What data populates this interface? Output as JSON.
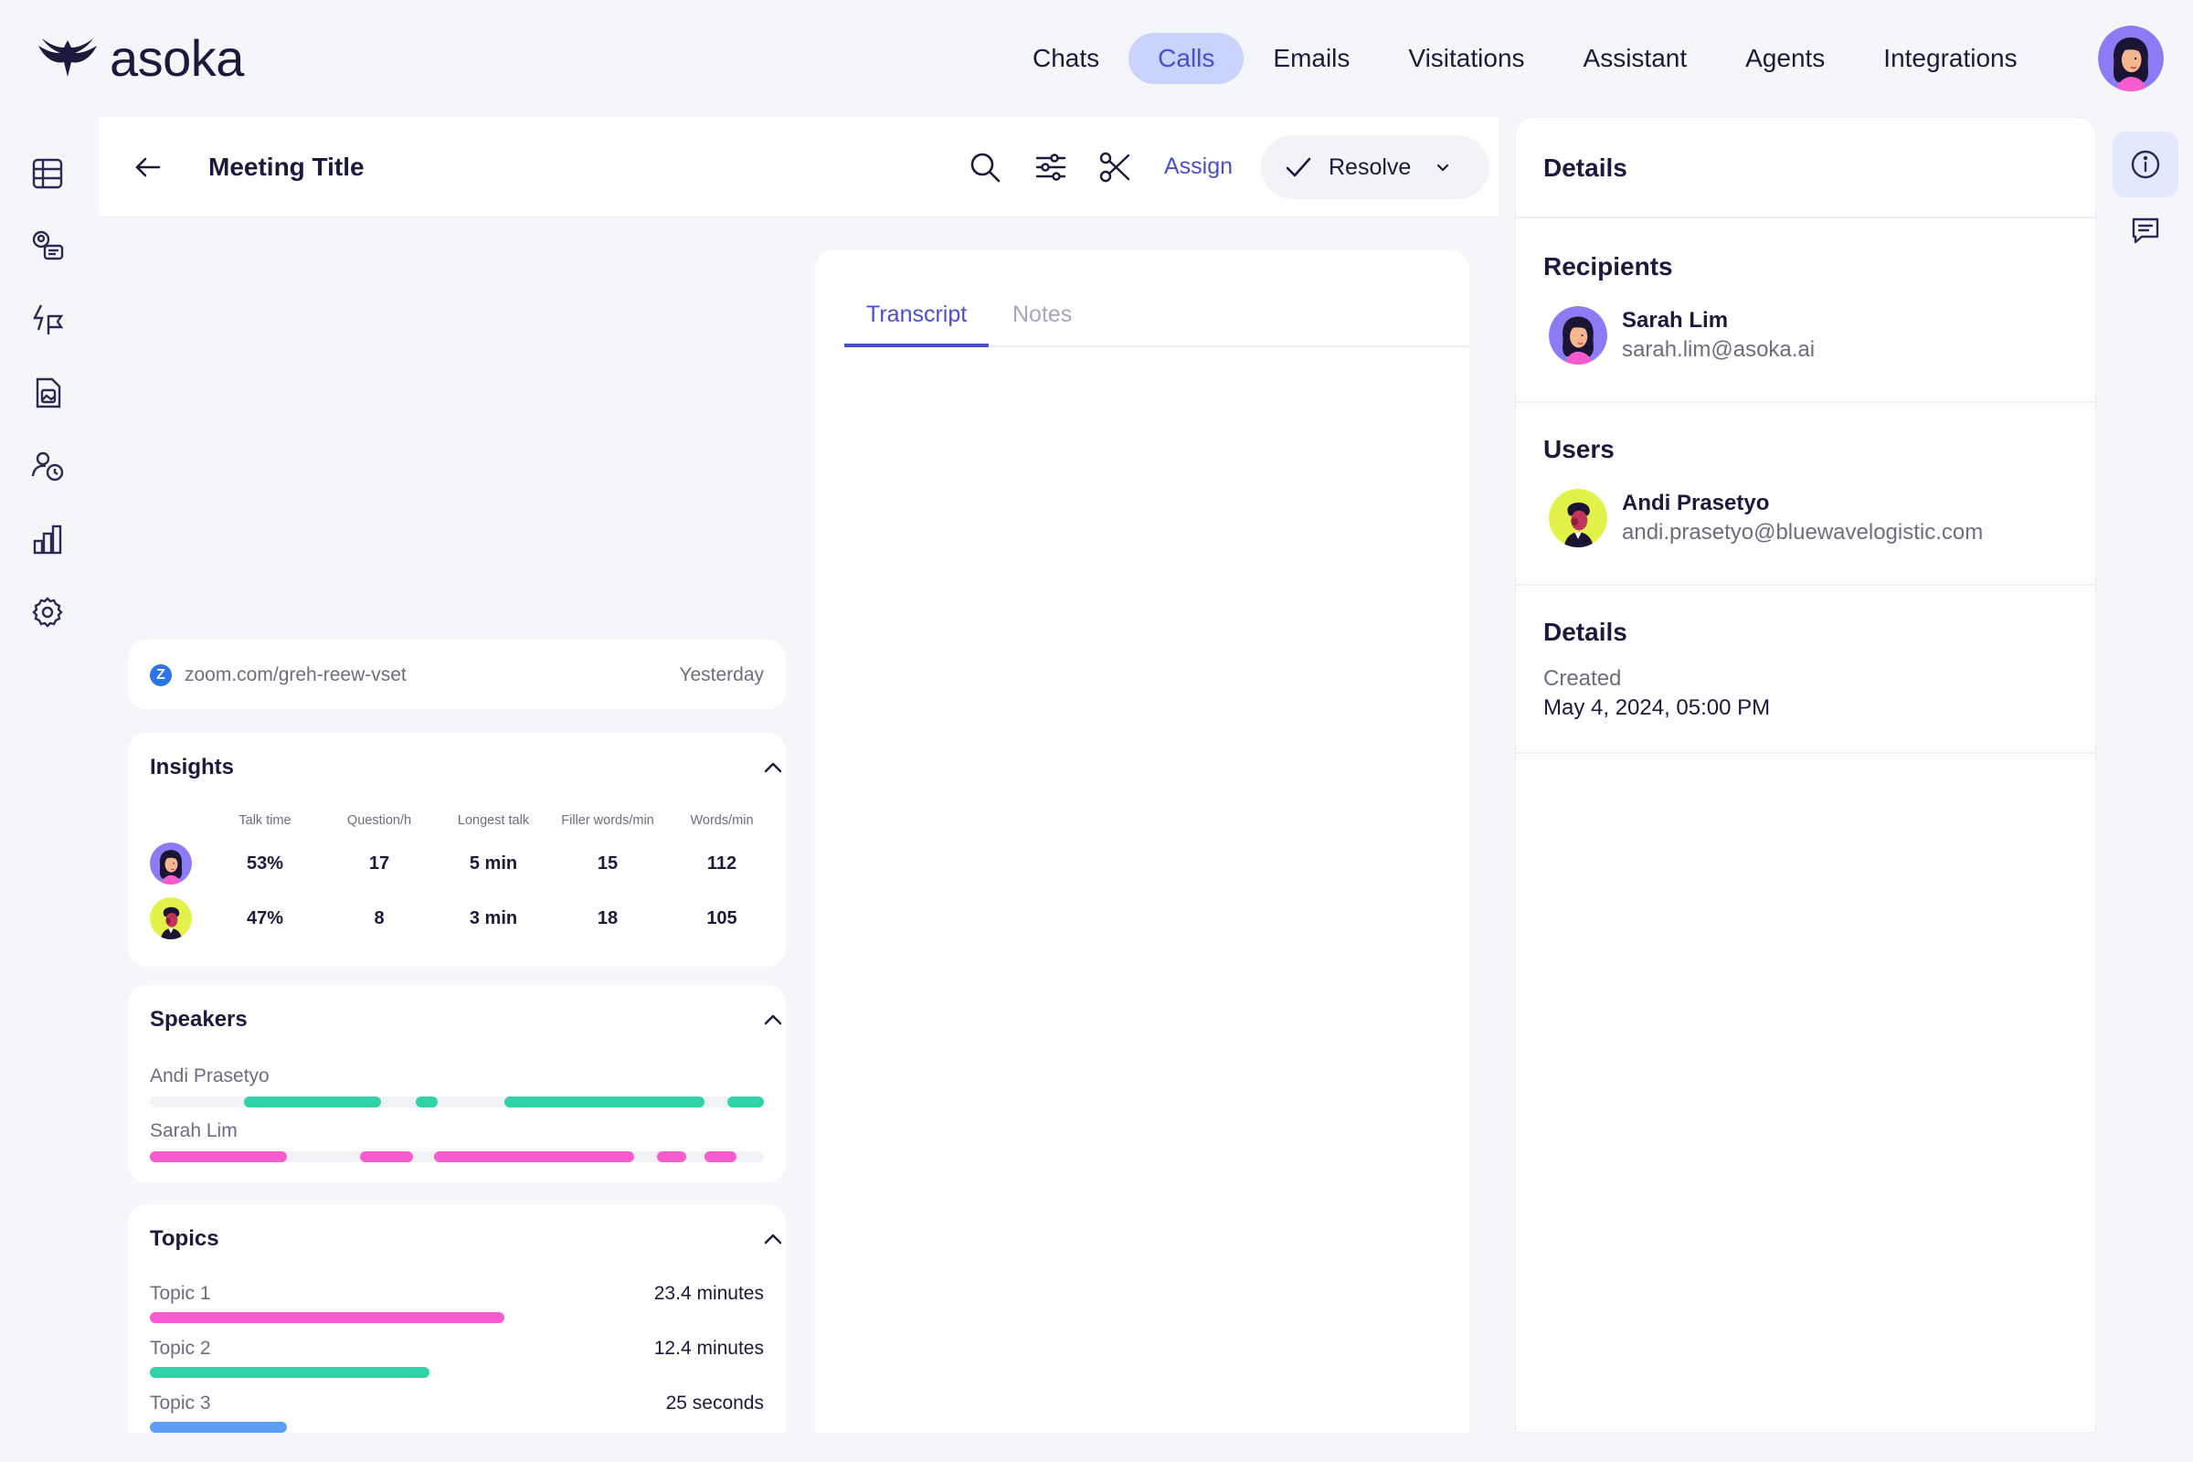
{
  "brand": {
    "name": "asoka"
  },
  "nav": {
    "items": [
      {
        "label": "Chats",
        "active": false
      },
      {
        "label": "Calls",
        "active": true
      },
      {
        "label": "Emails",
        "active": false
      },
      {
        "label": "Visitations",
        "active": false
      },
      {
        "label": "Assistant",
        "active": false
      },
      {
        "label": "Agents",
        "active": false
      },
      {
        "label": "Integrations",
        "active": false
      }
    ]
  },
  "left_rail": {
    "icons": [
      "table-icon",
      "chat-users-icon",
      "flag-flash-icon",
      "document-image-icon",
      "person-clock-icon",
      "bar-chart-icon",
      "settings-icon"
    ]
  },
  "main": {
    "title": "Meeting Title",
    "assign_label": "Assign",
    "resolve_label": "Resolve",
    "meeting_link": {
      "url": "zoom.com/greh-reew-vset",
      "date": "Yesterday",
      "badge": "Z"
    }
  },
  "insights": {
    "title": "Insights",
    "columns": [
      "Talk time",
      "Question/h",
      "Longest talk",
      "Filler words/min",
      "Words/min"
    ],
    "rows": [
      {
        "speaker": "Sarah Lim",
        "values": [
          "53%",
          "17",
          "5 min",
          "15",
          "112"
        ]
      },
      {
        "speaker": "Andi Prasetyo",
        "values": [
          "47%",
          "8",
          "3 min",
          "18",
          "105"
        ]
      }
    ]
  },
  "speakers": {
    "title": "Speakers",
    "tracks": [
      {
        "name": "Andi Prasetyo",
        "color": "#2fd3a7",
        "segments": [
          [
            0.153,
            0.376
          ],
          [
            0.433,
            0.469
          ],
          [
            0.578,
            0.903
          ],
          [
            0.94,
            1.0
          ]
        ]
      },
      {
        "name": "Sarah Lim",
        "color": "#f75ccf",
        "segments": [
          [
            0.0,
            0.223
          ],
          [
            0.342,
            0.428
          ],
          [
            0.463,
            0.789
          ],
          [
            0.826,
            0.874
          ],
          [
            0.904,
            0.955
          ]
        ]
      }
    ]
  },
  "topics": {
    "title": "Topics",
    "items": [
      {
        "label": "Topic 1",
        "value": "23.4 minutes",
        "fraction": 0.578,
        "color": "#f75ccf"
      },
      {
        "label": "Topic 2",
        "value": "12.4 minutes",
        "fraction": 0.455,
        "color": "#2fd3a7"
      },
      {
        "label": "Topic 3",
        "value": "25 seconds",
        "fraction": 0.223,
        "color": "#5b9ef3"
      }
    ]
  },
  "transcript": {
    "tabs": [
      {
        "label": "Transcript",
        "active": true
      },
      {
        "label": "Notes",
        "active": false
      }
    ]
  },
  "details": {
    "title": "Details",
    "recipients": {
      "title": "Recipients",
      "name": "Sarah Lim",
      "email": "sarah.lim@asoka.ai"
    },
    "users": {
      "title": "Users",
      "name": "Andi Prasetyo",
      "email": "andi.prasetyo@bluewavelogistic.com"
    },
    "info": {
      "title": "Details",
      "created_label": "Created",
      "created_value": "May 4, 2024, 05:00 PM"
    }
  },
  "right_rail": {
    "icons": [
      "info-icon",
      "comment-icon"
    ]
  }
}
